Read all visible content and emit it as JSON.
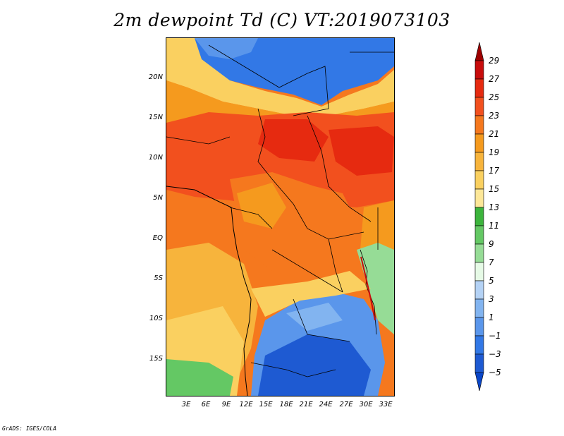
{
  "title": "2m dewpoint Td (C) VT:2019073103",
  "footer": "GrADS: IGES/COLA",
  "map": {
    "lat_labels": [
      "20N",
      "15N",
      "10N",
      "5N",
      "EQ",
      "5S",
      "10S",
      "15S"
    ],
    "lon_labels": [
      "3E",
      "6E",
      "9E",
      "12E",
      "15E",
      "18E",
      "21E",
      "24E",
      "27E",
      "30E",
      "33E"
    ],
    "region": "Central Africa",
    "lon_range": [
      0,
      35
    ],
    "lat_range": [
      -20,
      24
    ]
  },
  "colorbar": {
    "labels": [
      "29",
      "27",
      "25",
      "23",
      "21",
      "19",
      "17",
      "15",
      "13",
      "11",
      "9",
      "7",
      "5",
      "3",
      "1",
      "−1",
      "−3",
      "−5"
    ],
    "colors_top_to_bottom": [
      "#9e0000",
      "#c80c0c",
      "#e62a10",
      "#f2501e",
      "#f5781e",
      "#f59a1e",
      "#f7b43c",
      "#fad060",
      "#fde798",
      "#3cb43c",
      "#64c864",
      "#96dc96",
      "#e6fae6",
      "#b4d2f5",
      "#82b4f0",
      "#5a96eb",
      "#3278e6",
      "#1e5ad2",
      "#0a46c8"
    ]
  }
}
